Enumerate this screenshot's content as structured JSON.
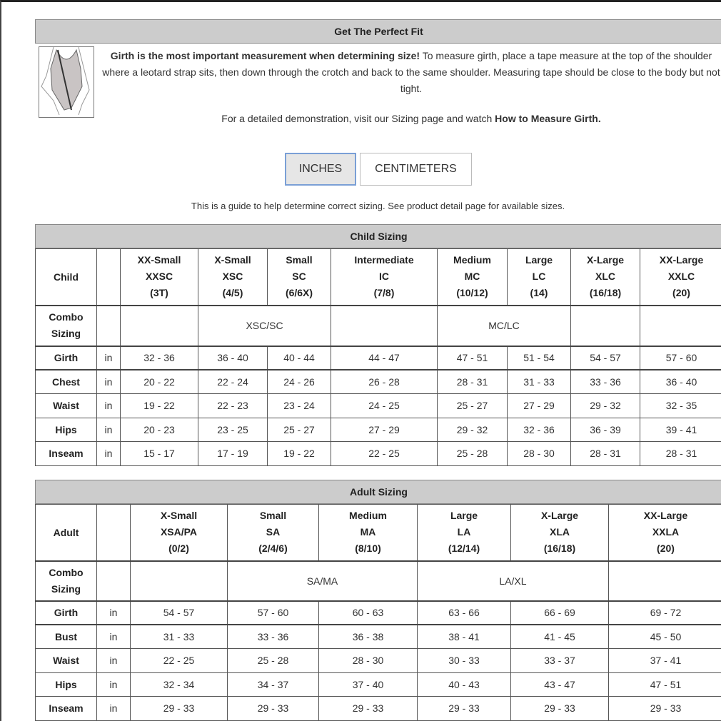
{
  "fit": {
    "title": "Get The Perfect Fit",
    "intro_bold": "Girth is the most important measurement when determining size!",
    "intro_rest": " To measure girth, place a tape measure at the top of the shoulder where a leotard strap sits, then down through the crotch and back to the same shoulder. Measuring tape should be close to the body but not tight.",
    "demo_text": "For a detailed demonstration, visit our Sizing page and watch ",
    "demo_link": "How to Measure Girth."
  },
  "units": {
    "inches": "INCHES",
    "centimeters": "CENTIMETERS",
    "selected": "INCHES"
  },
  "guide": "This is a guide to help determine correct sizing. See product detail page for available sizes.",
  "child": {
    "title": "Child Sizing",
    "corner": "Child",
    "combo_label": "Combo Sizing",
    "sizes": [
      [
        "XX-Small",
        "XXSC",
        "(3T)"
      ],
      [
        "X-Small",
        "XSC",
        "(4/5)"
      ],
      [
        "Small",
        "SC",
        "(6/6X)"
      ],
      [
        "Intermediate",
        "IC",
        "(7/8)"
      ],
      [
        "Medium",
        "MC",
        "(10/12)"
      ],
      [
        "Large",
        "LC",
        "(14)"
      ],
      [
        "X-Large",
        "XLC",
        "(16/18)"
      ],
      [
        "XX-Large",
        "XXLC",
        "(20)"
      ]
    ],
    "combos": [
      "",
      "XSC/SC",
      "",
      "MC/LC",
      "",
      ""
    ],
    "rows": [
      {
        "label": "Girth",
        "unit": "in",
        "values": [
          "32 - 36",
          "36 - 40",
          "40 - 44",
          "44 - 47",
          "47 - 51",
          "51 - 54",
          "54 - 57",
          "57 - 60"
        ]
      },
      {
        "label": "Chest",
        "unit": "in",
        "values": [
          "20 - 22",
          "22 - 24",
          "24 - 26",
          "26 - 28",
          "28 - 31",
          "31 - 33",
          "33 - 36",
          "36 - 40"
        ]
      },
      {
        "label": "Waist",
        "unit": "in",
        "values": [
          "19 - 22",
          "22 - 23",
          "23 - 24",
          "24 - 25",
          "25 - 27",
          "27 - 29",
          "29 - 32",
          "32 - 35"
        ]
      },
      {
        "label": "Hips",
        "unit": "in",
        "values": [
          "20 - 23",
          "23 - 25",
          "25 - 27",
          "27 - 29",
          "29 - 32",
          "32 - 36",
          "36 - 39",
          "39 - 41"
        ]
      },
      {
        "label": "Inseam",
        "unit": "in",
        "values": [
          "15 - 17",
          "17 - 19",
          "19 - 22",
          "22 - 25",
          "25 - 28",
          "28 - 30",
          "28 - 31",
          "28 - 31"
        ]
      }
    ]
  },
  "adult": {
    "title": "Adult Sizing",
    "corner": "Adult",
    "combo_label": "Combo Sizing",
    "sizes": [
      [
        "X-Small",
        "XSA/PA",
        "(0/2)"
      ],
      [
        "Small",
        "SA",
        "(2/4/6)"
      ],
      [
        "Medium",
        "MA",
        "(8/10)"
      ],
      [
        "Large",
        "LA",
        "(12/14)"
      ],
      [
        "X-Large",
        "XLA",
        "(16/18)"
      ],
      [
        "XX-Large",
        "XXLA",
        "(20)"
      ]
    ],
    "combos": [
      "",
      "SA/MA",
      "LA/XL",
      ""
    ],
    "rows": [
      {
        "label": "Girth",
        "unit": "in",
        "values": [
          "54 - 57",
          "57 - 60",
          "60 - 63",
          "63 - 66",
          "66 - 69",
          "69 - 72"
        ]
      },
      {
        "label": "Bust",
        "unit": "in",
        "values": [
          "31 - 33",
          "33 - 36",
          "36 - 38",
          "38 - 41",
          "41 - 45",
          "45 - 50"
        ]
      },
      {
        "label": "Waist",
        "unit": "in",
        "values": [
          "22 - 25",
          "25 - 28",
          "28 - 30",
          "30 - 33",
          "33 - 37",
          "37 - 41"
        ]
      },
      {
        "label": "Hips",
        "unit": "in",
        "values": [
          "32 - 34",
          "34 - 37",
          "37 - 40",
          "40 - 43",
          "43 - 47",
          "47 - 51"
        ]
      },
      {
        "label": "Inseam",
        "unit": "in",
        "values": [
          "29 - 33",
          "29 - 33",
          "29 - 33",
          "29 - 33",
          "29 - 33",
          "29 - 33"
        ]
      }
    ]
  }
}
